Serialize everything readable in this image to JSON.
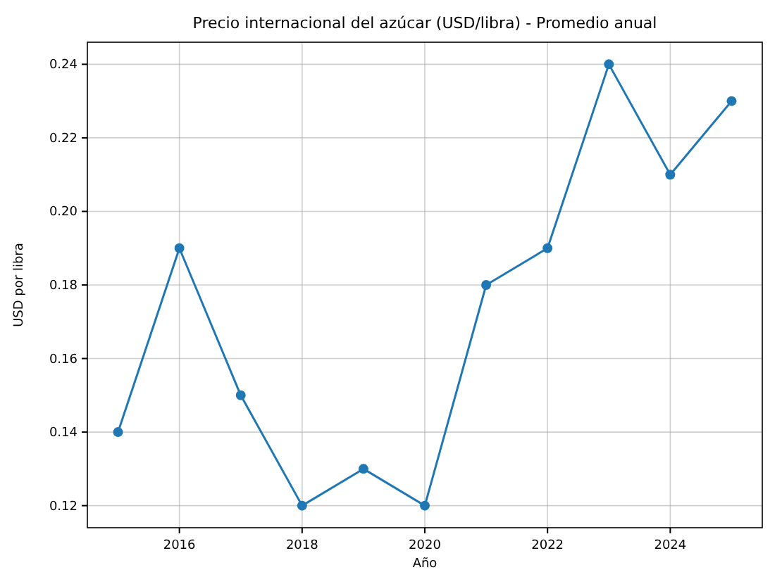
{
  "chart_data": {
    "type": "line",
    "title": "Precio internacional del azúcar (USD/libra) - Promedio anual",
    "xlabel": "Año",
    "ylabel": "USD por libra",
    "x": [
      2015,
      2016,
      2017,
      2018,
      2019,
      2020,
      2021,
      2022,
      2023,
      2024,
      2025
    ],
    "series": [
      {
        "color": "#1f77b4",
        "values": [
          0.14,
          0.19,
          0.15,
          0.12,
          0.13,
          0.12,
          0.18,
          0.19,
          0.24,
          0.21,
          0.23
        ]
      }
    ],
    "xlim": [
      2014.5,
      2025.5
    ],
    "xticks": [
      2016,
      2018,
      2020,
      2022,
      2024
    ],
    "ylim": [
      0.114,
      0.246
    ],
    "yticks": [
      {
        "value": 0.12,
        "label": "0.12"
      },
      {
        "value": 0.14,
        "label": "0.14"
      },
      {
        "value": 0.16,
        "label": "0.16"
      },
      {
        "value": 0.18,
        "label": "0.18"
      },
      {
        "value": 0.2,
        "label": "0.20"
      },
      {
        "value": 0.22,
        "label": "0.22"
      },
      {
        "value": 0.24,
        "label": "0.24"
      }
    ],
    "grid": true,
    "marker": "circle",
    "line_style": "solid"
  }
}
